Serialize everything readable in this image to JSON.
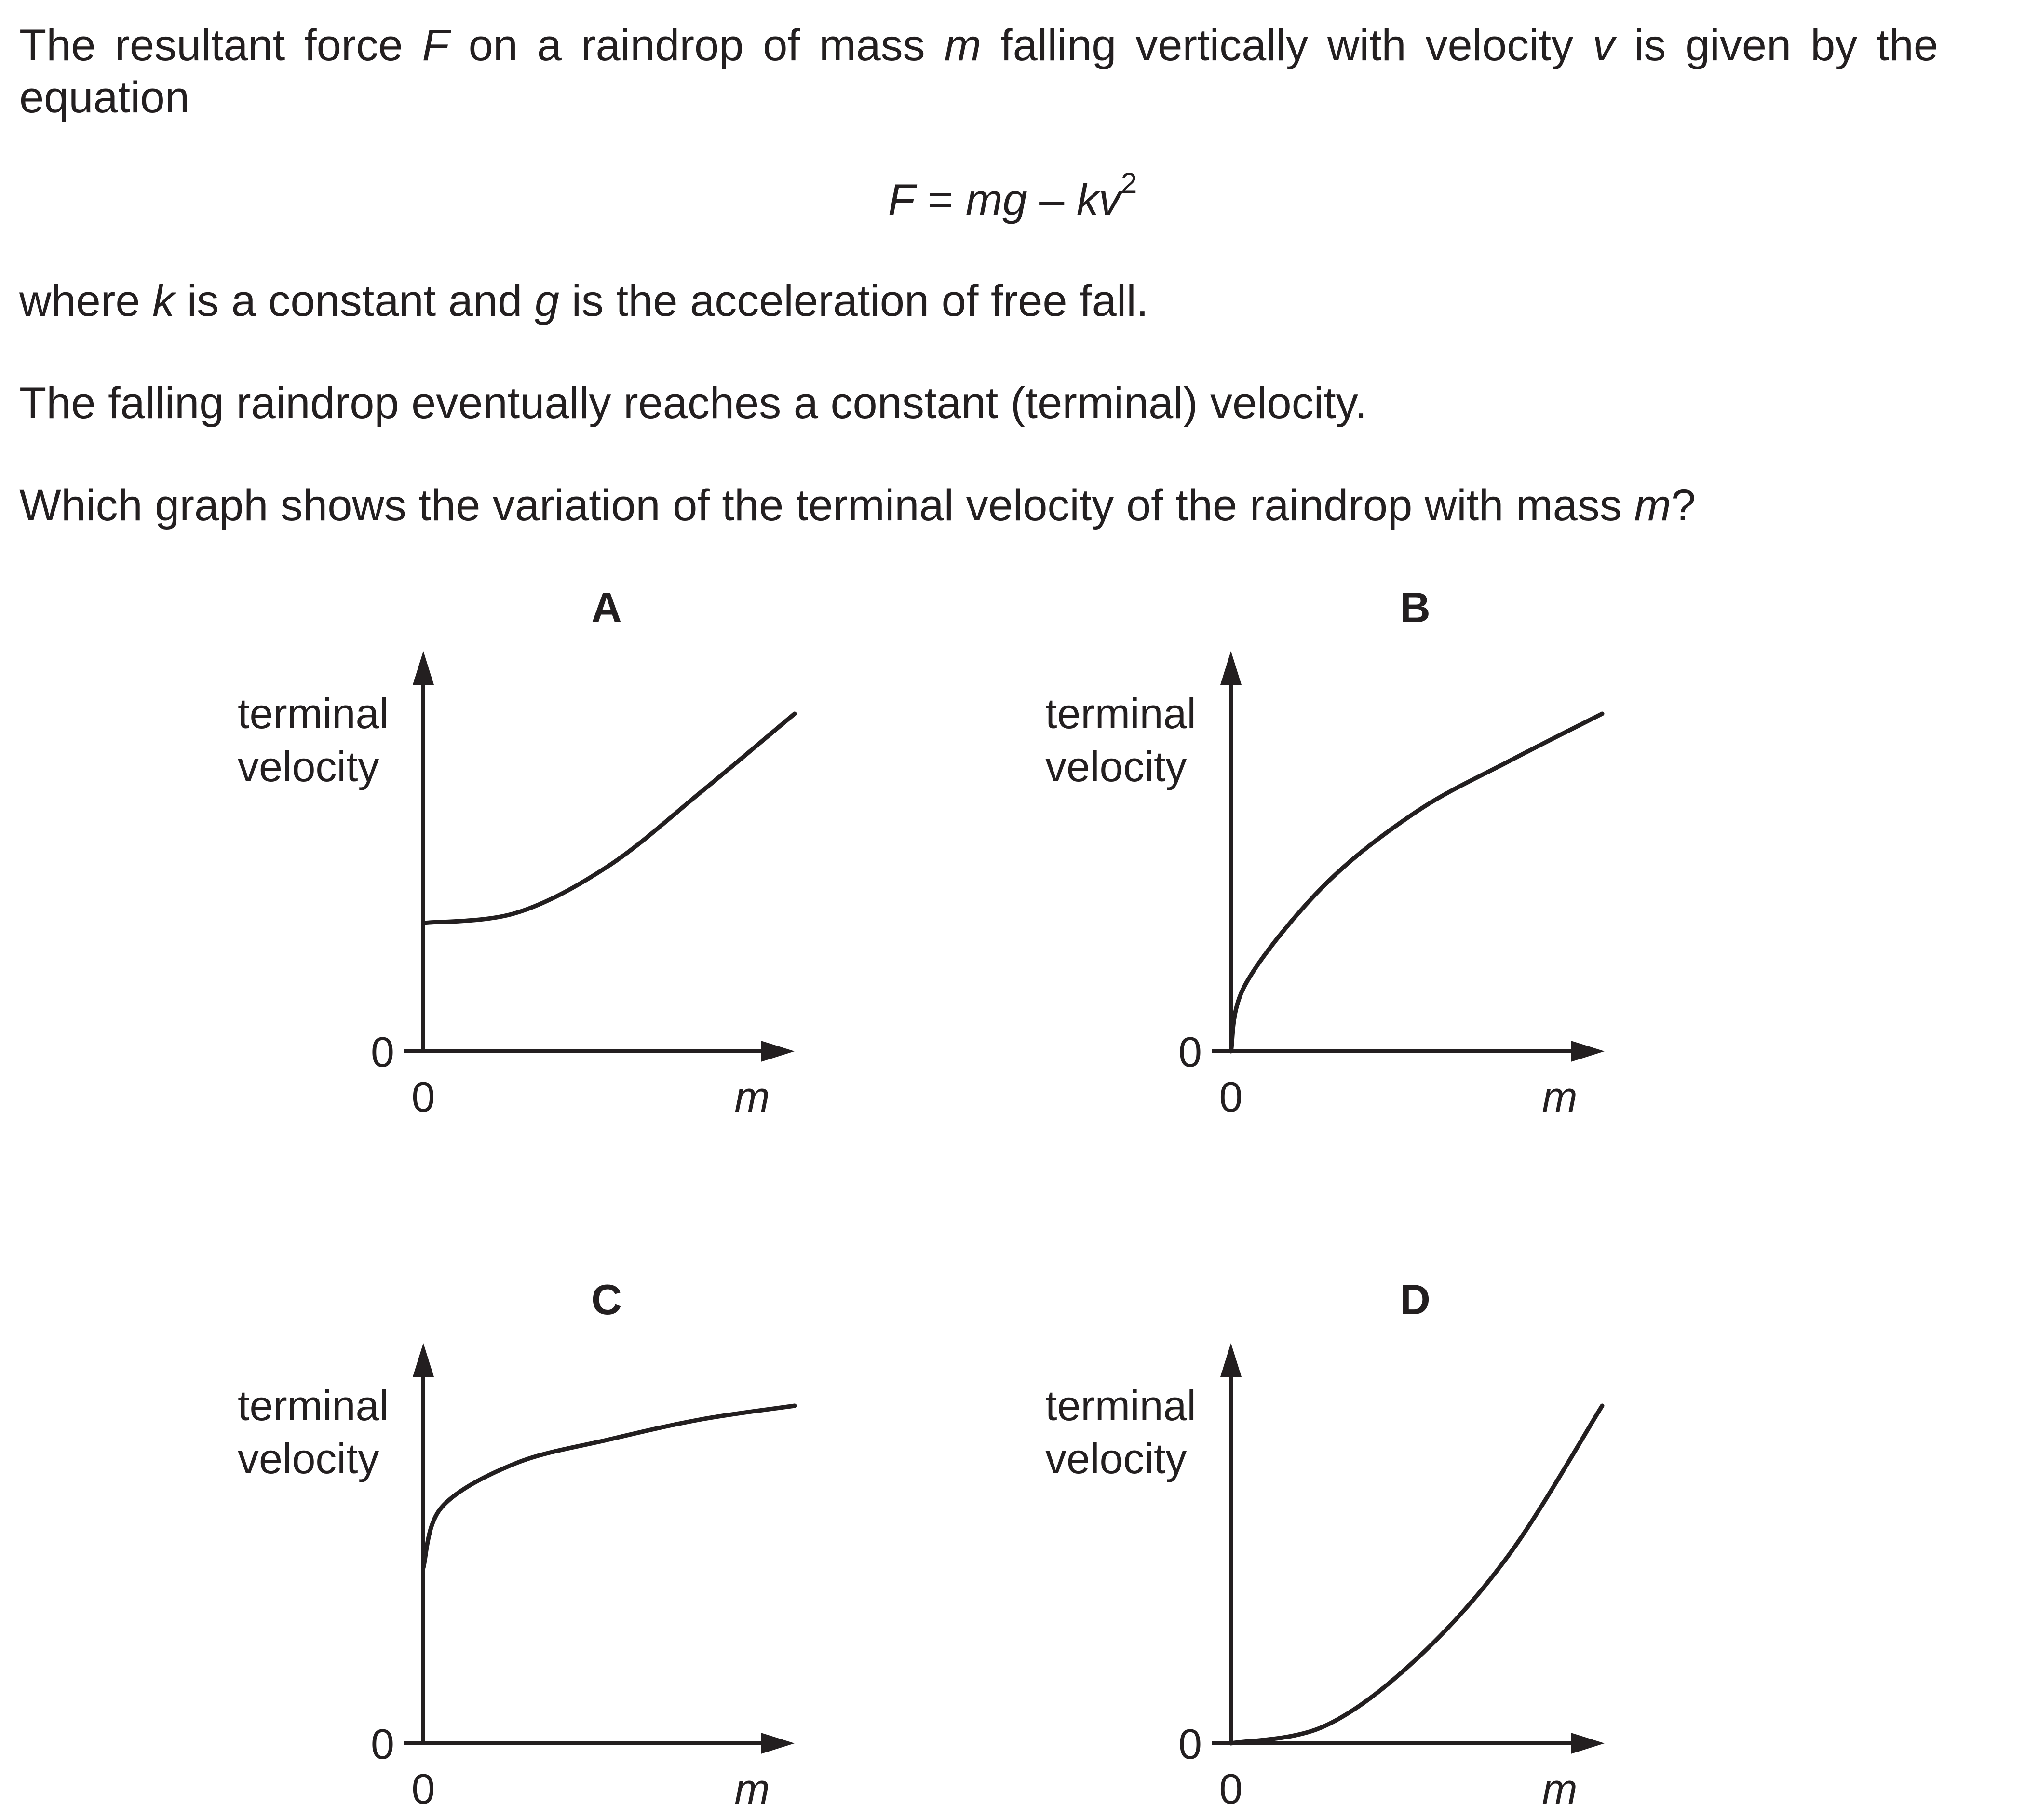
{
  "question": {
    "line1_a": "The resultant force ",
    "line1_F": "F",
    "line1_b": " on a raindrop of mass ",
    "line1_m": "m",
    "line1_c": " falling vertically with velocity ",
    "line1_v": "v",
    "line1_d": " is given by the equation",
    "equation_lhs": "F",
    "equation_eq": " = ",
    "equation_mg": "mg",
    "equation_minus": " – ",
    "equation_kv": "kv",
    "equation_exp": "2",
    "line2_a": "where ",
    "line2_k": "k",
    "line2_b": " is a constant and ",
    "line2_g": "g",
    "line2_c": " is the acceleration of free fall.",
    "line3": "The falling raindrop eventually reaches a constant (terminal) velocity.",
    "line4_a": "Which graph shows the variation of the terminal velocity of the raindrop with mass ",
    "line4_m": "m",
    "line4_b": "?"
  },
  "graph_labels": {
    "y_label_line1": "terminal",
    "y_label_line2": "velocity",
    "x_label": "m",
    "origin_x": "0",
    "origin_y": "0"
  },
  "chart_data": [
    {
      "letter": "A",
      "type": "line",
      "shape": "starts above zero, curves upward (concave up)",
      "x": [
        0,
        0.25,
        0.5,
        0.75,
        1.0
      ],
      "y": [
        0.38,
        0.41,
        0.55,
        0.77,
        1.0
      ]
    },
    {
      "letter": "B",
      "type": "line",
      "shape": "starts at origin, rises like a square root (concave down)",
      "x": [
        0,
        0.04,
        0.25,
        0.5,
        0.75,
        1.0
      ],
      "y": [
        0,
        0.2,
        0.49,
        0.71,
        0.86,
        1.0
      ]
    },
    {
      "letter": "C",
      "type": "line",
      "shape": "starts above zero, rises steeply then flattens (concave down)",
      "x": [
        0,
        0.05,
        0.25,
        0.5,
        0.75,
        1.0
      ],
      "y": [
        0.52,
        0.7,
        0.83,
        0.9,
        0.96,
        1.0
      ]
    },
    {
      "letter": "D",
      "type": "line",
      "shape": "starts at origin, curves upward (concave up)",
      "x": [
        0,
        0.25,
        0.5,
        0.75,
        1.0
      ],
      "y": [
        0,
        0.05,
        0.25,
        0.56,
        1.0
      ]
    }
  ]
}
